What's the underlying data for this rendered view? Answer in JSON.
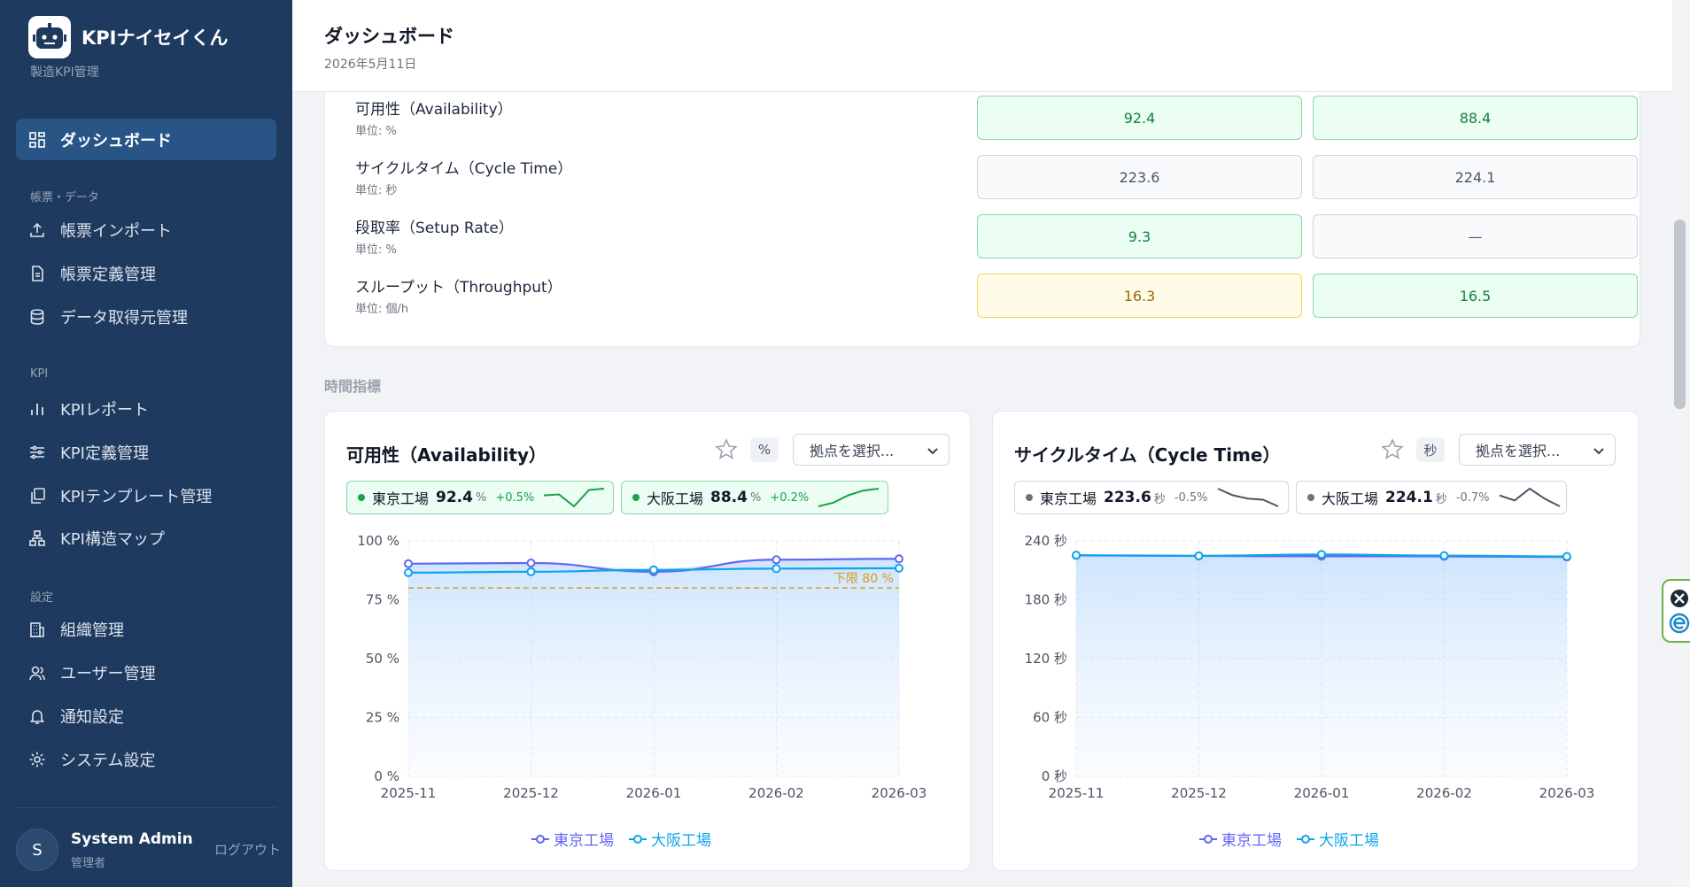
{
  "app": {
    "name": "KPIナイセイくん",
    "subtitle": "製造KPI管理"
  },
  "nav": {
    "active": {
      "label": "ダッシュボード",
      "icon": "dashboard-icon"
    },
    "sections": [
      {
        "label": "帳票・データ",
        "items": [
          {
            "label": "帳票インポート",
            "icon": "upload-icon"
          },
          {
            "label": "帳票定義管理",
            "icon": "document-icon"
          },
          {
            "label": "データ取得元管理",
            "icon": "database-icon"
          }
        ]
      },
      {
        "label": "KPI",
        "items": [
          {
            "label": "KPIレポート",
            "icon": "bar-chart-icon"
          },
          {
            "label": "KPI定義管理",
            "icon": "sliders-icon"
          },
          {
            "label": "KPIテンプレート管理",
            "icon": "copy-icon"
          },
          {
            "label": "KPI構造マップ",
            "icon": "hierarchy-icon"
          }
        ]
      },
      {
        "label": "設定",
        "items": [
          {
            "label": "組織管理",
            "icon": "building-icon"
          },
          {
            "label": "ユーザー管理",
            "icon": "users-icon"
          },
          {
            "label": "通知設定",
            "icon": "bell-icon"
          },
          {
            "label": "システム設定",
            "icon": "gear-icon"
          }
        ]
      }
    ]
  },
  "user": {
    "initial": "S",
    "name": "System Admin",
    "role": "管理者",
    "logout": "ログアウト"
  },
  "header": {
    "title": "ダッシュボード",
    "date": "2026年5月11日"
  },
  "kpi_table": [
    {
      "name": "可用性（Availability）",
      "unit": "単位: %",
      "values": [
        {
          "text": "92.4",
          "status": "green"
        },
        {
          "text": "88.4",
          "status": "green"
        }
      ]
    },
    {
      "name": "サイクルタイム（Cycle Time）",
      "unit": "単位: 秒",
      "values": [
        {
          "text": "223.6",
          "status": "gray"
        },
        {
          "text": "224.1",
          "status": "gray"
        }
      ]
    },
    {
      "name": "段取率（Setup Rate）",
      "unit": "単位: %",
      "values": [
        {
          "text": "9.3",
          "status": "green"
        },
        {
          "text": "—",
          "status": "gray"
        }
      ]
    },
    {
      "name": "スループット（Throughput）",
      "unit": "単位: 個/h",
      "values": [
        {
          "text": "16.3",
          "status": "yellow"
        },
        {
          "text": "16.5",
          "status": "green"
        }
      ]
    }
  ],
  "time_section": {
    "title": "時間指標"
  },
  "cards": [
    {
      "title": "可用性（Availability）",
      "unit_badge": "%",
      "select_placeholder": "拠点を選択...",
      "chips": [
        {
          "site": "東京工場",
          "value": "92.4",
          "unit": "%",
          "delta": "+0.5%",
          "tone": "green"
        },
        {
          "site": "大阪工場",
          "value": "88.4",
          "unit": "%",
          "delta": "+0.2%",
          "tone": "green"
        }
      ],
      "legend": [
        "東京工場",
        "大阪工場"
      ]
    },
    {
      "title": "サイクルタイム（Cycle Time）",
      "unit_badge": "秒",
      "select_placeholder": "拠点を選択...",
      "chips": [
        {
          "site": "東京工場",
          "value": "223.6",
          "unit": "秒",
          "delta": "-0.5%",
          "tone": "gray"
        },
        {
          "site": "大阪工場",
          "value": "224.1",
          "unit": "秒",
          "delta": "-0.7%",
          "tone": "gray"
        }
      ],
      "legend": [
        "東京工場",
        "大阪工場"
      ]
    }
  ],
  "colors": {
    "tokyo": "#6366f1",
    "osaka": "#0ea5e9",
    "threshold": "#d4a017",
    "positive": "#16a34a",
    "neutral": "#6b7280"
  },
  "chart_data": [
    {
      "type": "line",
      "title": "可用性（Availability）",
      "x": [
        "2025-11",
        "2025-12",
        "2026-01",
        "2026-02",
        "2026-03"
      ],
      "series": [
        {
          "name": "東京工場",
          "values": [
            90.3,
            90.6,
            86.9,
            92.0,
            92.4
          ]
        },
        {
          "name": "大阪工場",
          "values": [
            86.5,
            86.9,
            87.7,
            88.2,
            88.4
          ]
        }
      ],
      "ylim": [
        0,
        100
      ],
      "yticks": [
        "0 %",
        "25 %",
        "50 %",
        "75 %",
        "100 %"
      ],
      "threshold": {
        "value": 80,
        "label": "下限 80 %"
      },
      "grid": true,
      "legend": "bottom"
    },
    {
      "type": "line",
      "title": "サイクルタイム（Cycle Time）",
      "x": [
        "2025-11",
        "2025-12",
        "2026-01",
        "2026-02",
        "2026-03"
      ],
      "series": [
        {
          "name": "東京工場",
          "values": [
            225.2,
            224.6,
            224.3,
            224.2,
            223.6
          ]
        },
        {
          "name": "大阪工場",
          "values": [
            225.4,
            224.8,
            226.2,
            225.0,
            224.1
          ]
        }
      ],
      "ylim": [
        0,
        240
      ],
      "yticks": [
        "0 秒",
        "60 秒",
        "120 秒",
        "180 秒",
        "240 秒"
      ],
      "grid": true,
      "legend": "bottom"
    }
  ],
  "sparklines": [
    [
      [
        90.3,
        90.6,
        86.9,
        92.0,
        92.4
      ],
      [
        86.5,
        86.9,
        87.7,
        88.2,
        88.4
      ]
    ],
    [
      [
        225.2,
        224.6,
        224.3,
        224.2,
        223.6
      ],
      [
        225.4,
        224.8,
        226.2,
        225.0,
        224.1
      ]
    ]
  ]
}
